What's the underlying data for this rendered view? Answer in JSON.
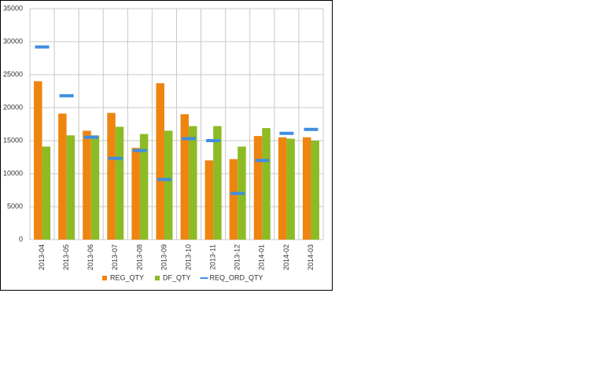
{
  "chart_data": {
    "type": "bar",
    "categories": [
      "2013-04",
      "2013-05",
      "2013-06",
      "2013-07",
      "2013-08",
      "2013-09",
      "2013-10",
      "2013-11",
      "2013-12",
      "2014-01",
      "2014-02",
      "2014-03"
    ],
    "series": [
      {
        "name": "REG_QTY",
        "color": "#ee8510",
        "type": "bar",
        "values": [
          24000,
          19100,
          16500,
          19200,
          13900,
          23700,
          19000,
          12000,
          12200,
          15700,
          15500,
          15500
        ]
      },
      {
        "name": "DF_QTY",
        "color": "#8dbb25",
        "type": "bar",
        "values": [
          14100,
          15800,
          15800,
          17100,
          16000,
          16500,
          17200,
          17200,
          14100,
          16900,
          15300,
          15000
        ]
      },
      {
        "name": "REQ_ORD_QTY",
        "color": "#3f8ee0",
        "type": "dash",
        "values": [
          29200,
          21800,
          15500,
          12300,
          13500,
          9100,
          15300,
          15000,
          7000,
          12000,
          16100,
          16700
        ]
      }
    ],
    "ylim": [
      0,
      35000
    ],
    "yticks": [
      0,
      5000,
      10000,
      15000,
      20000,
      25000,
      30000,
      35000
    ],
    "grid": true,
    "legend": "bottom"
  }
}
